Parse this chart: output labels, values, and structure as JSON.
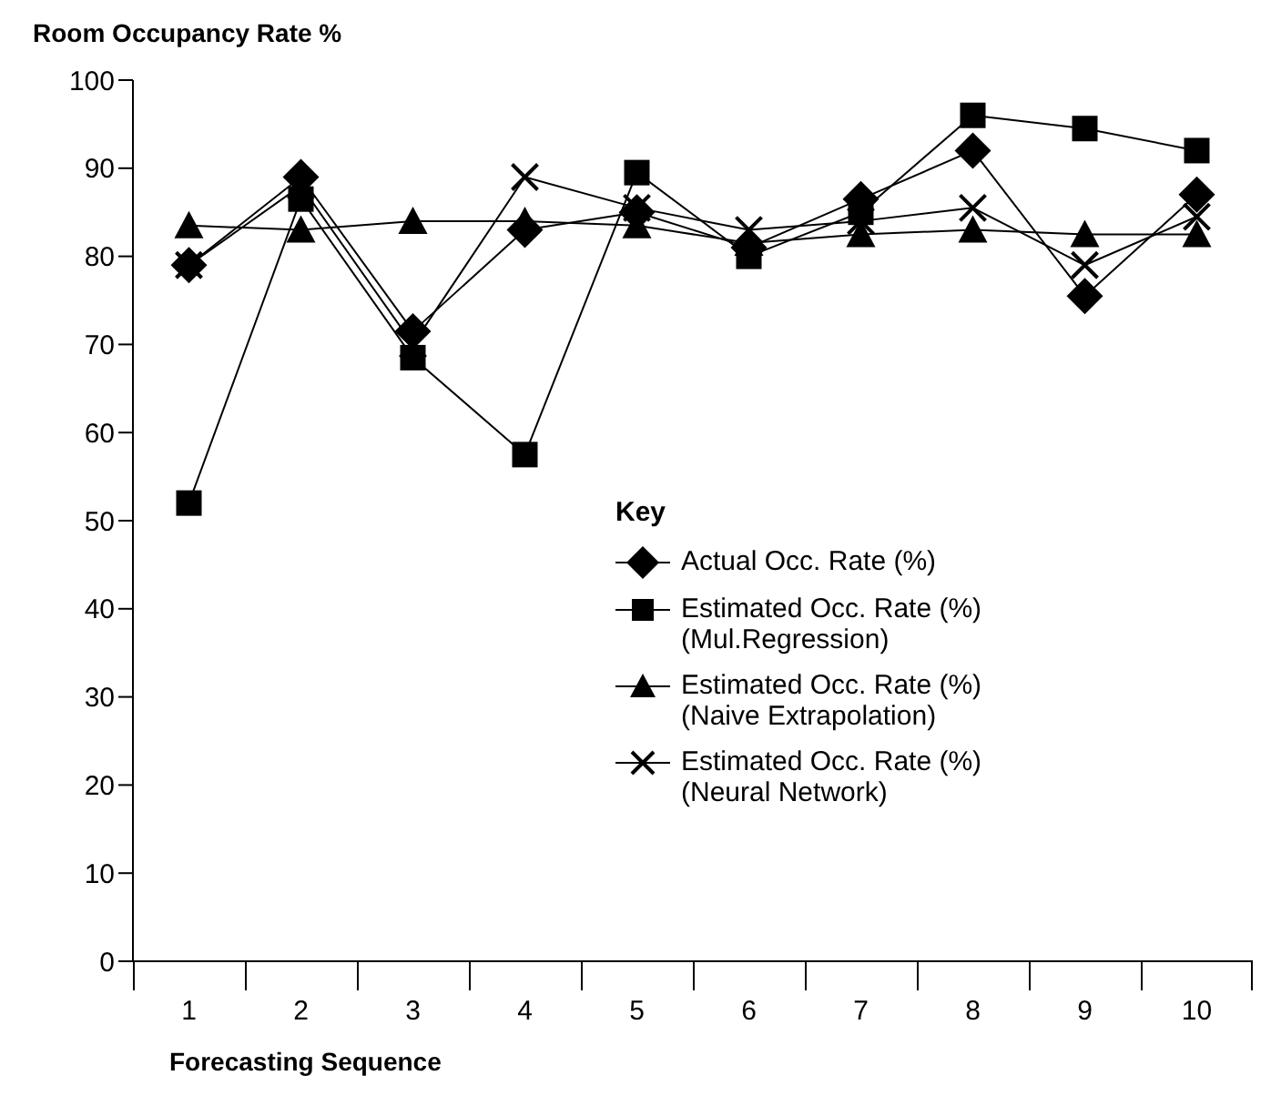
{
  "chart_data": {
    "type": "line",
    "ylabel": "Room Occupancy Rate %",
    "xlabel": "Forecasting Sequence",
    "legend_title": "Key",
    "legend": "bottom right",
    "grid": false,
    "categories": [
      "1",
      "2",
      "3",
      "4",
      "5",
      "6",
      "7",
      "8",
      "9",
      "10"
    ],
    "ylim": [
      0,
      100
    ],
    "yticks": [
      0,
      10,
      20,
      30,
      40,
      50,
      60,
      70,
      80,
      90,
      100
    ],
    "series": [
      {
        "name": "Actual Occ. Rate (%)",
        "color": "#000000",
        "marker": "diamond",
        "values": [
          79,
          89,
          71.5,
          83,
          85,
          81,
          86.5,
          92,
          75.5,
          87
        ]
      },
      {
        "name": "Estimated Occ. Rate (%) (Mul.Regression)",
        "color": "#000000",
        "marker": "square",
        "values": [
          52,
          86.5,
          68.5,
          57.5,
          89.5,
          80,
          85,
          96,
          94.5,
          92
        ]
      },
      {
        "name": "Estimated Occ. Rate (%) (Naive Extrapolation)",
        "color": "#000000",
        "marker": "triangle",
        "values": [
          83.5,
          83,
          84,
          84,
          83.5,
          81.5,
          82.5,
          83,
          82.5,
          82.5
        ]
      },
      {
        "name": "Estimated Occ. Rate (%) (Neural Network)",
        "color": "#000000",
        "marker": "cross",
        "values": [
          79,
          88,
          70,
          89,
          85.5,
          83,
          84,
          85.5,
          79,
          84.5
        ]
      }
    ]
  }
}
